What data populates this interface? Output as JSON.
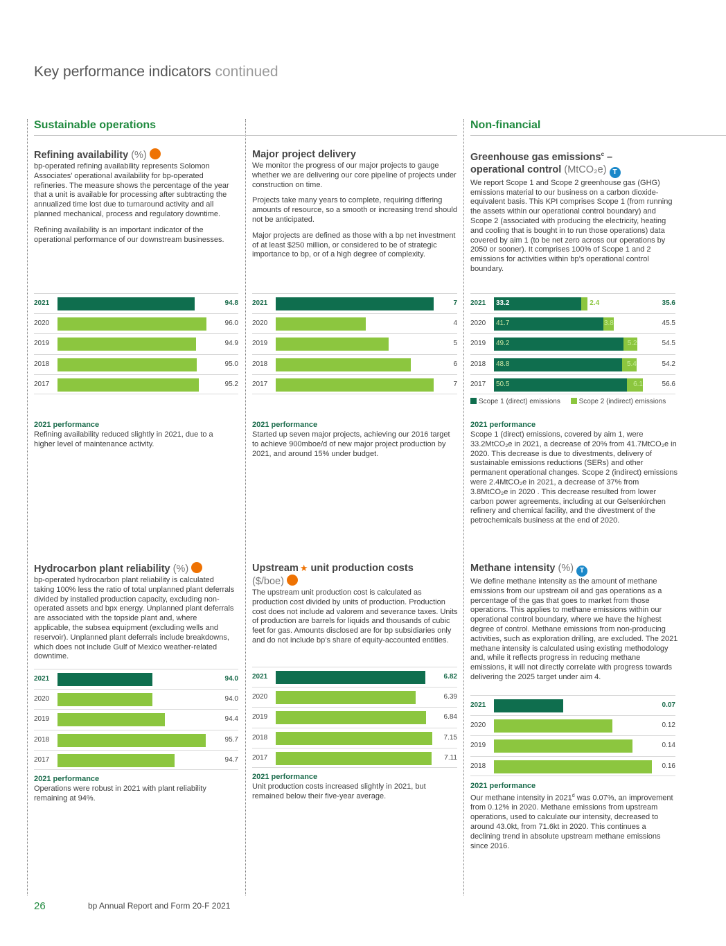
{
  "page": {
    "title": "Key performance indicators",
    "title_suffix": "continued",
    "page_number": "26",
    "footer": "bp Annual Report and Form 20-F 2021"
  },
  "sections": {
    "sustainable": "Sustainable operations",
    "nonfinancial": "Non-financial"
  },
  "colors": {
    "dark_green": "#0f6e4e",
    "light_green": "#8cc63f",
    "orange": "#ee7203",
    "blue": "#1a88c9"
  },
  "perf_heading": "2021 performance",
  "refining": {
    "title": "Refining availability",
    "unit": "(%)",
    "body": [
      "bp-operated refining availability represents Solomon Associates’ operational availability for bp-operated refineries. The measure shows the percentage of the year that a unit is available for processing after subtracting the annualized time lost due to turnaround activity and all planned mechanical, process and regulatory downtime.",
      "Refining availability is an important indicator of the operational performance of our downstream businesses."
    ],
    "performance": "Refining availability reduced slightly in 2021, due to a higher level of maintenance activity."
  },
  "major_projects": {
    "title": "Major project delivery",
    "body": [
      "We monitor the progress of our major projects to gauge whether we are delivering our core pipeline of projects under construction on time.",
      "Projects take many years to complete, requiring differing amounts of resource, so a smooth or increasing trend should not be anticipated.",
      "Major projects are defined as those with a bp net investment of at least $250 million, or considered to be of strategic importance to bp, or of a high degree of complexity."
    ],
    "performance": "Started up seven major projects, achieving our 2016 target to achieve 900mboe/d of new major project production by 2021, and around 15% under budget."
  },
  "ghg": {
    "title_line1": "Greenhouse gas emissions",
    "title_sup": "c",
    "title_dash": " –",
    "title_line2": "operational control",
    "unit": "(MtCO₂e)",
    "badge": "T",
    "body": "We report Scope 1 and Scope 2 greenhouse gas (GHG) emissions material to our business on a carbon dioxide-equivalent basis. This KPI comprises Scope 1 (from running the assets within our operational control boundary) and Scope 2 (associated with producing the electricity, heating and cooling that is bought in to run those operations) data covered by aim 1 (to be net zero across our operations by 2050 or sooner). It comprises 100% of Scope 1 and 2 emissions for activities within bp’s operational control boundary.",
    "legend": {
      "scope1": "Scope 1 (direct) emissions",
      "scope2": "Scope 2 (indirect) emissions"
    },
    "performance": "Scope 1 (direct) emissions, covered by aim 1, were 33.2MtCO₂e in 2021, a decrease of 20% from 41.7MtCO₂e in 2020. This decrease is due to divestments, delivery of sustainable emissions reductions (SERs) and other permanent operational changes. Scope 2 (indirect) emissions were 2.4MtCO₂e in 2021, a decrease of 37% from 3.8MtCO₂e in 2020 . This decrease resulted from lower carbon power agreements, including at our Gelsenkirchen refinery and chemical facility, and the divestment of the petrochemicals business at the end of 2020."
  },
  "hydrocarbon": {
    "title": "Hydrocarbon plant reliability",
    "unit": "(%)",
    "body": "bp-operated hydrocarbon plant reliability is calculated taking 100% less the ratio of total unplanned plant deferrals divided by installed production capacity, excluding non-operated assets and bpx energy. Unplanned plant deferrals are associated with the topside plant and, where applicable, the subsea equipment (excluding wells and reservoir). Unplanned plant deferrals include breakdowns, which does not include Gulf of Mexico weather-related downtime.",
    "performance": "Operations were robust in 2021 with plant reliability remaining at 94%."
  },
  "upstream": {
    "title_a": "Upstream",
    "star": "★",
    "title_b": "unit production costs",
    "unit": "($/boe)",
    "body": "The upstream unit production cost is calculated as production cost divided by units of production. Production cost does not include ad valorem and severance taxes. Units of production are barrels for liquids and thousands of cubic feet for gas. Amounts disclosed are for bp subsidiaries only and do not include bp’s share of equity-accounted entities.",
    "performance": "Unit production costs increased slightly in 2021, but remained below their five-year average."
  },
  "methane": {
    "title": "Methane intensity",
    "unit": "(%)",
    "badge": "T",
    "body": "We define methane intensity as the amount of methane emissions from our upstream oil and gas operations as a percentage of the gas that goes to market from those operations. This applies to methane emissions within our operational control boundary, where we have the highest degree of control. Methane emissions from non-producing activities, such as exploration drilling, are excluded. The 2021 methane intensity is calculated using existing methodology and, while it reflects progress in reducing methane emissions, it will not directly correlate with progress towards delivering the 2025 target under aim 4.",
    "perf_a": "Our methane intensity in 2021",
    "perf_sup": "d",
    "perf_b": " was 0.07%, an improvement from 0.12% in 2020. Methane emissions from upstream operations, used to calculate our intensity, decreased to around 43.0kt, from 71.6kt in 2020. This continues a declining trend in absolute upstream methane emissions since 2016."
  },
  "chart_data": [
    {
      "id": "refining",
      "type": "bar",
      "title": "Refining availability (%)",
      "categories": [
        "2021",
        "2020",
        "2019",
        "2018",
        "2017"
      ],
      "values": [
        94.8,
        96.0,
        94.9,
        95.0,
        95.2
      ],
      "labels": [
        "94.8",
        "96.0",
        "94.9",
        "95.0",
        "95.2"
      ],
      "range": [
        80,
        97
      ]
    },
    {
      "id": "projects",
      "type": "bar",
      "title": "Major project delivery",
      "categories": [
        "2021",
        "2020",
        "2019",
        "2018",
        "2017"
      ],
      "values": [
        7,
        4,
        5,
        6,
        7
      ],
      "labels": [
        "7",
        "4",
        "5",
        "6",
        "7"
      ],
      "range": [
        0,
        7
      ]
    },
    {
      "id": "ghg",
      "type": "bar",
      "stacked": true,
      "title": "Greenhouse gas emissions – operational control (MtCO₂e)",
      "categories": [
        "2021",
        "2020",
        "2019",
        "2018",
        "2017"
      ],
      "series": [
        {
          "name": "Scope 1 (direct) emissions",
          "values": [
            33.2,
            41.7,
            49.2,
            48.8,
            50.5
          ],
          "labels": [
            "33.2",
            "41.7",
            "49.2",
            "48.8",
            "50.5"
          ]
        },
        {
          "name": "Scope 2 (indirect) emissions",
          "values": [
            2.4,
            3.8,
            5.2,
            5.4,
            6.1
          ],
          "labels": [
            "2.4",
            "3.8",
            "5.2",
            "5.4",
            "6.1"
          ]
        }
      ],
      "totals": [
        "35.6",
        "45.5",
        "54.5",
        "54.2",
        "56.6"
      ],
      "range": [
        0,
        60
      ]
    },
    {
      "id": "hydrocarbon",
      "type": "bar",
      "title": "Hydrocarbon plant reliability (%)",
      "categories": [
        "2021",
        "2020",
        "2019",
        "2018",
        "2017"
      ],
      "values": [
        94.0,
        94.0,
        94.4,
        95.7,
        94.7
      ],
      "labels": [
        "94.0",
        "94.0",
        "94.4",
        "95.7",
        "94.7"
      ],
      "range": [
        91,
        96
      ]
    },
    {
      "id": "upstream",
      "type": "bar",
      "title": "Upstream unit production costs ($/boe)",
      "categories": [
        "2021",
        "2020",
        "2019",
        "2018",
        "2017"
      ],
      "values": [
        6.82,
        6.39,
        6.84,
        7.15,
        7.11
      ],
      "labels": [
        "6.82",
        "6.39",
        "6.84",
        "7.15",
        "7.11"
      ],
      "range": [
        0,
        7.2
      ]
    },
    {
      "id": "methane",
      "type": "bar",
      "title": "Methane intensity (%)",
      "categories": [
        "2021",
        "2020",
        "2019",
        "2018"
      ],
      "values": [
        0.07,
        0.12,
        0.14,
        0.16
      ],
      "labels": [
        "0.07",
        "0.12",
        "0.14",
        "0.16"
      ],
      "range": [
        0,
        0.16
      ]
    }
  ]
}
